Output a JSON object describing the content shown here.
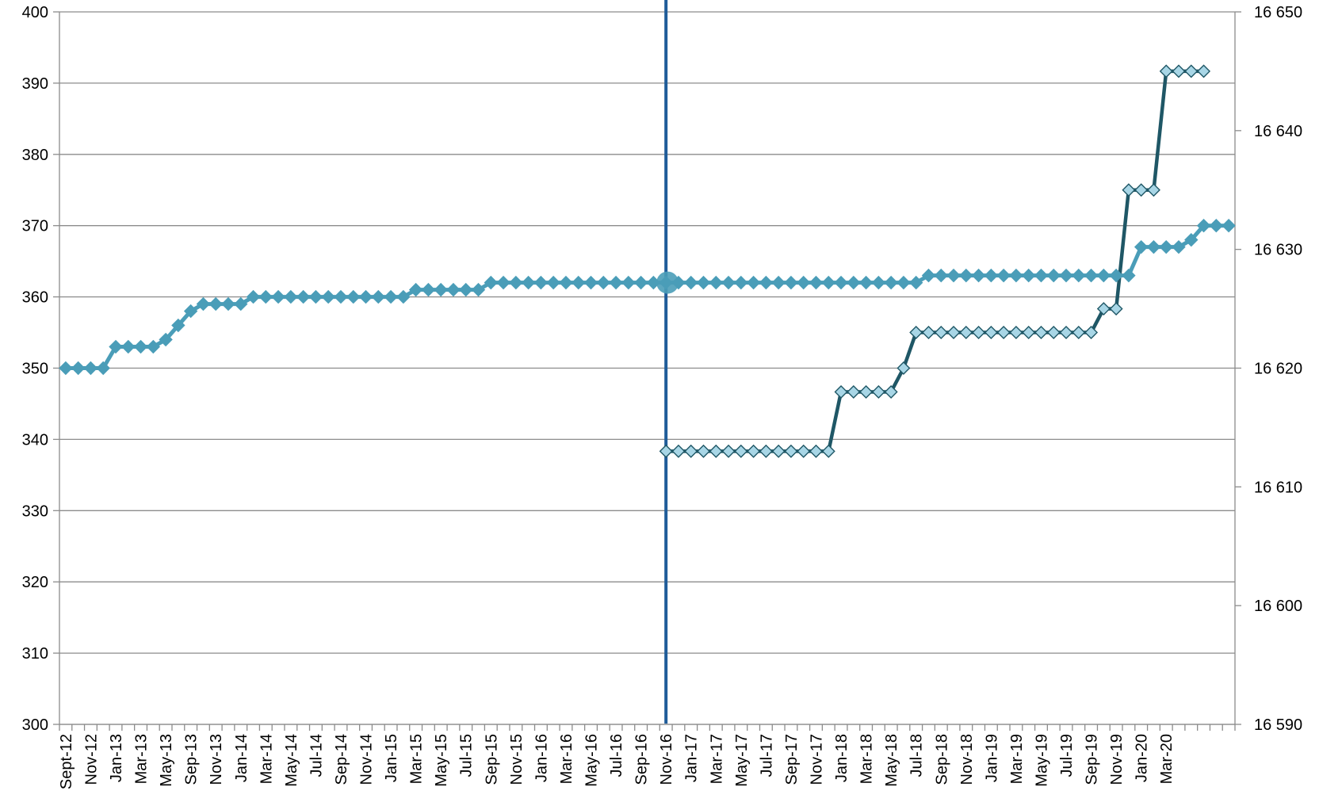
{
  "chart_data": {
    "type": "line",
    "title": "",
    "xlabel": "",
    "ylabel": "",
    "y_left": {
      "range": [
        300,
        400
      ],
      "ticks": [
        "300",
        "310",
        "320",
        "330",
        "340",
        "350",
        "360",
        "370",
        "380",
        "390",
        "400"
      ]
    },
    "y_right": {
      "range": [
        16590,
        16650
      ],
      "ticks": [
        "16 590",
        "16 600",
        "16 610",
        "16 620",
        "16 630",
        "16 640",
        "16 650"
      ]
    },
    "x_start_label": "Sept-12",
    "x_tick_labels": [
      "Sept-12",
      "Nov-12",
      "Jan-13",
      "Mar-13",
      "May-13",
      "Sep-13",
      "Nov-13",
      "Jan-14",
      "Mar-14",
      "May-14",
      "Jul-14",
      "Sep-14",
      "Nov-14",
      "Jan-15",
      "Mar-15",
      "May-15",
      "Jul-15",
      "Sep-15",
      "Nov-15",
      "Jan-16",
      "Mar-16",
      "May-16",
      "Jul-16",
      "Sep-16",
      "Nov-16",
      "Jan-17",
      "Mar-17",
      "May-17",
      "Jul-17",
      "Sep-17",
      "Nov-17",
      "Jan-18",
      "Mar-18",
      "May-18",
      "Jul-18",
      "Sep-18",
      "Nov-18",
      "Jan-19",
      "Mar-19",
      "May-19",
      "Jul-19",
      "Sep-19",
      "Nov-19",
      "Jan-20",
      "Mar-20"
    ],
    "marker_line_label": "Nov-16",
    "highlight_value": 362,
    "grid": true,
    "legend": "none",
    "colors": {
      "left_series": "#4a9db8",
      "right_series_line": "#1f5766",
      "right_series_marker": "#a8d6e6",
      "vertical_line": "#1f5c99",
      "grid": "#8c8c8c"
    },
    "series": [
      {
        "axis": "left",
        "start_month": 0,
        "values": [
          350,
          350,
          350,
          350,
          353,
          353,
          353,
          353,
          354,
          356,
          358,
          359,
          359,
          359,
          359,
          360,
          360,
          360,
          360,
          360,
          360,
          360,
          360,
          360,
          360,
          360,
          360,
          360,
          361,
          361,
          361,
          361,
          361,
          361,
          362,
          362,
          362,
          362,
          362,
          362,
          362,
          362,
          362,
          362,
          362,
          362,
          362,
          362,
          362,
          362,
          362,
          362,
          362,
          362,
          362,
          362,
          362,
          362,
          362,
          362,
          362,
          362,
          362,
          362,
          362,
          362,
          362,
          362,
          362,
          363,
          363,
          363,
          363,
          363,
          363,
          363,
          363,
          363,
          363,
          363,
          363,
          363,
          363,
          363,
          363,
          363,
          367,
          367,
          367,
          367,
          368,
          370,
          370,
          370
        ]
      },
      {
        "axis": "right",
        "start_month": 48,
        "values": [
          16613,
          16613,
          16613,
          16613,
          16613,
          16613,
          16613,
          16613,
          16613,
          16613,
          16613,
          16613,
          16613,
          16613,
          16618,
          16618,
          16618,
          16618,
          16618,
          16620,
          16623,
          16623,
          16623,
          16623,
          16623,
          16623,
          16623,
          16623,
          16623,
          16623,
          16623,
          16623,
          16623,
          16623,
          16623,
          16625,
          16625,
          16635,
          16635,
          16635,
          16645,
          16645,
          16645,
          16645
        ]
      }
    ]
  }
}
